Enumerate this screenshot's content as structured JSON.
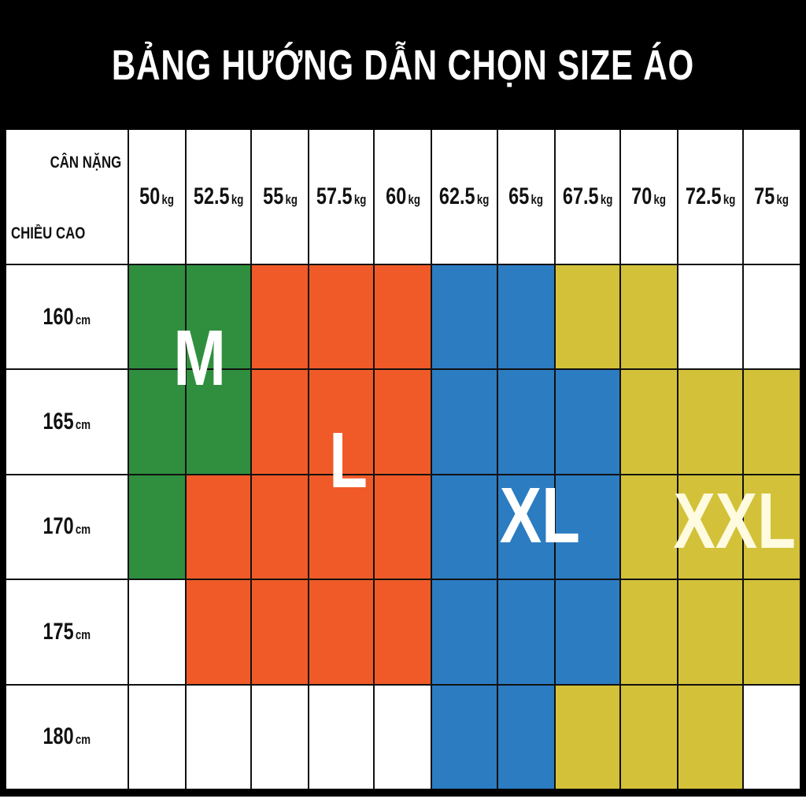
{
  "title": "BẢNG HƯỚNG DẪN CHỌN SIZE ÁO",
  "corner": {
    "weight_label": "CÂN NẶNG",
    "height_label": "CHIỀU CAO"
  },
  "weights": [
    {
      "value": "50",
      "unit": "kg"
    },
    {
      "value": "52.5",
      "unit": "kg"
    },
    {
      "value": "55",
      "unit": "kg"
    },
    {
      "value": "57.5",
      "unit": "kg"
    },
    {
      "value": "60",
      "unit": "kg"
    },
    {
      "value": "62.5",
      "unit": "kg"
    },
    {
      "value": "65",
      "unit": "kg"
    },
    {
      "value": "67.5",
      "unit": "kg"
    },
    {
      "value": "70",
      "unit": "kg"
    },
    {
      "value": "72.5",
      "unit": "kg"
    },
    {
      "value": "75",
      "unit": "kg"
    }
  ],
  "heights": [
    {
      "value": "160",
      "unit": "cm"
    },
    {
      "value": "165",
      "unit": "cm"
    },
    {
      "value": "170",
      "unit": "cm"
    },
    {
      "value": "175",
      "unit": "cm"
    },
    {
      "value": "180",
      "unit": "cm"
    }
  ],
  "sizes": {
    "M": "M",
    "L": "L",
    "XL": "XL",
    "XXL": "XXL"
  },
  "colors": {
    "M": "#2f8f3e",
    "L": "#f05a28",
    "XL": "#2c7cc1",
    "XXL": "#d3c13a",
    "none": "#ffffff"
  },
  "grid": [
    [
      "M",
      "M",
      "L",
      "L",
      "L",
      "XL",
      "XL",
      "XXL",
      "XXL",
      "none",
      "none"
    ],
    [
      "M",
      "M",
      "L",
      "L",
      "L",
      "XL",
      "XL",
      "XL",
      "XXL",
      "XXL",
      "XXL"
    ],
    [
      "M",
      "L",
      "L",
      "L",
      "L",
      "XL",
      "XL",
      "XL",
      "XXL",
      "XXL",
      "XXL"
    ],
    [
      "none",
      "L",
      "L",
      "L",
      "L",
      "XL",
      "XL",
      "XL",
      "XXL",
      "XXL",
      "XXL"
    ],
    [
      "none",
      "none",
      "none",
      "none",
      "none",
      "XL",
      "XL",
      "XXL",
      "XXL",
      "XXL",
      "none"
    ]
  ]
}
